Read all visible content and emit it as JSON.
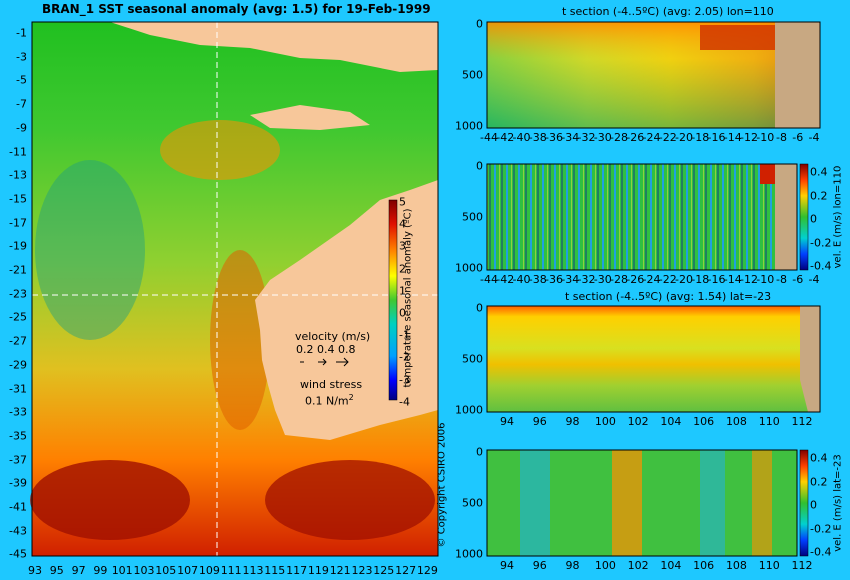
{
  "map": {
    "title": "BRAN_1  SST seasonal anomaly  (avg: 1.5)  for 19-Feb-1999",
    "lat_labels": [
      "-1",
      "-3",
      "-5",
      "-7",
      "-9",
      "-11",
      "-13",
      "-15",
      "-17",
      "-19",
      "-21",
      "-23",
      "-25",
      "-27",
      "-29",
      "-31",
      "-33",
      "-35",
      "-37",
      "-39",
      "-41",
      "-43",
      "-45"
    ],
    "lon_labels": [
      "93",
      "95",
      "97",
      "99",
      "101",
      "103",
      "105",
      "107",
      "109",
      "111",
      "113",
      "115",
      "117",
      "119",
      "121",
      "123",
      "125",
      "127",
      "129"
    ],
    "colorbar": {
      "label": "temperature seasonal anomaly (ºC)",
      "ticks": [
        "5",
        "4",
        "3",
        "2",
        "1",
        "0",
        "-1",
        "-2",
        "-3",
        "-4"
      ]
    },
    "velocity_label": "velocity (m/s)",
    "velocity_scale": "0.2 0.4 0.8",
    "wind_label": "wind stress",
    "wind_value": "0.1  N/m",
    "wind_exp": "2",
    "copyright": "© Copyright CSIRO 2006",
    "section_lines": {
      "lon": "110",
      "lat": "-23"
    }
  },
  "panels": [
    {
      "title": "t section (-4..5ºC)  (avg: 2.05)  lon=110",
      "y_ticks": [
        "0",
        "500",
        "1000"
      ],
      "x_ticks": [
        "-44",
        "-42",
        "-40",
        "-38",
        "-36",
        "-34",
        "-32",
        "-30",
        "-28",
        "-26",
        "-24",
        "-22",
        "-20",
        "-18",
        "-16",
        "-14",
        "-12",
        "-10",
        "-8",
        "-6",
        "-4"
      ],
      "colorbar": null
    },
    {
      "title": "",
      "y_ticks": [
        "0",
        "500",
        "1000"
      ],
      "x_ticks": [
        "-44",
        "-42",
        "-40",
        "-38",
        "-36",
        "-34",
        "-32",
        "-30",
        "-28",
        "-26",
        "-24",
        "-22",
        "-20",
        "-18",
        "-16",
        "-14",
        "-12",
        "-10",
        "-8",
        "-6",
        "-4"
      ],
      "colorbar": {
        "label": "vel. E (m/s) lon=110",
        "ticks": [
          "0.4",
          "0.2",
          "0",
          "-0.2",
          "-0.4"
        ]
      }
    },
    {
      "title": "t section (-4..5ºC)  (avg: 1.54)  lat=-23",
      "y_ticks": [
        "0",
        "500",
        "1000"
      ],
      "x_ticks": [
        "94",
        "96",
        "98",
        "100",
        "102",
        "104",
        "106",
        "108",
        "110",
        "112"
      ],
      "colorbar": null
    },
    {
      "title": "",
      "y_ticks": [
        "0",
        "500",
        "1000"
      ],
      "x_ticks": [
        "94",
        "96",
        "98",
        "100",
        "102",
        "104",
        "106",
        "108",
        "110",
        "112"
      ],
      "colorbar": {
        "label": "vel. E (m/s) lat=-23",
        "ticks": [
          "0.4",
          "0.2",
          "0",
          "-0.2",
          "-0.4"
        ]
      }
    }
  ],
  "chart_data": [
    {
      "type": "heatmap",
      "title": "BRAN_1  SST seasonal anomaly  (avg: 1.5)  for 19-Feb-1999",
      "xlabel": "",
      "ylabel": "",
      "xlim": [
        93,
        130
      ],
      "ylim": [
        -45,
        0
      ],
      "colorbar_range": [
        -4,
        5
      ],
      "colorbar_label": "temperature seasonal anomaly (ºC)",
      "average": 1.5,
      "date": "19-Feb-1999"
    },
    {
      "type": "heatmap",
      "title": "t section (-4..5ºC)  (avg: 2.05)  lon=110",
      "x_label_values": [
        -44,
        -42,
        -40,
        -38,
        -36,
        -34,
        -32,
        -30,
        -28,
        -26,
        -24,
        -22,
        -20,
        -18,
        -16,
        -14,
        -12,
        -10,
        -8,
        -6,
        -4
      ],
      "y_range": [
        0,
        1000
      ],
      "y_inverted": true,
      "average": 2.05,
      "colorbar_range": [
        -4,
        5
      ]
    },
    {
      "type": "heatmap",
      "title": "",
      "x_label_values": [
        -44,
        -42,
        -40,
        -38,
        -36,
        -34,
        -32,
        -30,
        -28,
        -26,
        -24,
        -22,
        -20,
        -18,
        -16,
        -14,
        -12,
        -10,
        -8,
        -6,
        -4
      ],
      "y_range": [
        0,
        1000
      ],
      "y_inverted": true,
      "colorbar_label": "vel. E (m/s) lon=110",
      "colorbar_range": [
        -0.4,
        0.4
      ]
    },
    {
      "type": "heatmap",
      "title": "t section (-4..5ºC)  (avg: 1.54)  lat=-23",
      "x_label_values": [
        94,
        96,
        98,
        100,
        102,
        104,
        106,
        108,
        110,
        112
      ],
      "y_range": [
        0,
        1000
      ],
      "y_inverted": true,
      "average": 1.54,
      "colorbar_range": [
        -4,
        5
      ]
    },
    {
      "type": "heatmap",
      "title": "",
      "x_label_values": [
        94,
        96,
        98,
        100,
        102,
        104,
        106,
        108,
        110,
        112
      ],
      "y_range": [
        0,
        1000
      ],
      "y_inverted": true,
      "colorbar_label": "vel. E (m/s) lat=-23",
      "colorbar_range": [
        -0.4,
        0.4
      ]
    }
  ],
  "colors": {
    "background": "#1ec8ff",
    "land": "#f7c79a",
    "seafloor": "#c8a882",
    "section_line": "#ffffff",
    "colormap": [
      "#00007f",
      "#0000ff",
      "#00a0ff",
      "#00e0e0",
      "#10c060",
      "#20c020",
      "#80d020",
      "#ffff00",
      "#ffb000",
      "#ff6000",
      "#e01000",
      "#800000"
    ]
  }
}
